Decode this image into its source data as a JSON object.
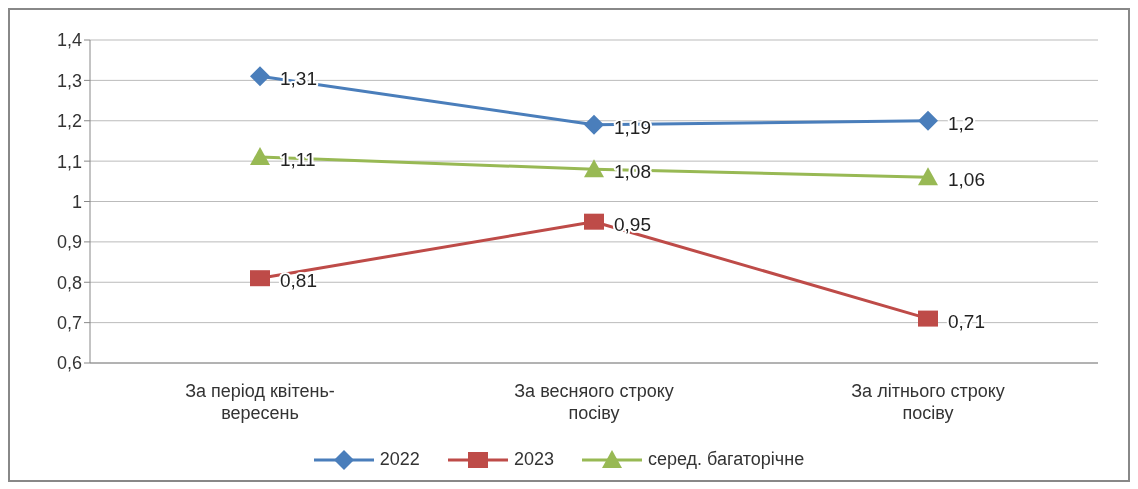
{
  "chart_data": {
    "type": "line",
    "categories": [
      "За період квітень-вересень",
      "За весняого строку посіву",
      "За літнього строку посіву"
    ],
    "series": [
      {
        "name": "2022",
        "color": "#4a7ebb",
        "marker": "diamond",
        "values": [
          1.31,
          1.19,
          1.2
        ],
        "value_labels": [
          "1,31",
          "1,19",
          "1,2"
        ]
      },
      {
        "name": "2023",
        "color": "#be4b48",
        "marker": "square",
        "values": [
          0.81,
          0.95,
          0.71
        ],
        "value_labels": [
          "0,81",
          "0,95",
          "0,71"
        ]
      },
      {
        "name": "серед. багаторічне",
        "color": "#98b954",
        "marker": "triangle",
        "values": [
          1.11,
          1.08,
          1.06
        ],
        "value_labels": [
          "1,11",
          "1,08",
          "1,06"
        ]
      }
    ],
    "ylim": [
      0.6,
      1.4
    ],
    "yticks": [
      {
        "value": 0.6,
        "label": "0,6"
      },
      {
        "value": 0.7,
        "label": "0,7"
      },
      {
        "value": 0.8,
        "label": "0,8"
      },
      {
        "value": 0.9,
        "label": "0,9"
      },
      {
        "value": 1,
        "label": "1"
      },
      {
        "value": 1.1,
        "label": "1,1"
      },
      {
        "value": 1.2,
        "label": "1,2"
      },
      {
        "value": 1.3,
        "label": "1,3"
      },
      {
        "value": 1.4,
        "label": "1,4"
      }
    ],
    "grid": "y",
    "legend": "bottom",
    "line_style": "solid"
  }
}
